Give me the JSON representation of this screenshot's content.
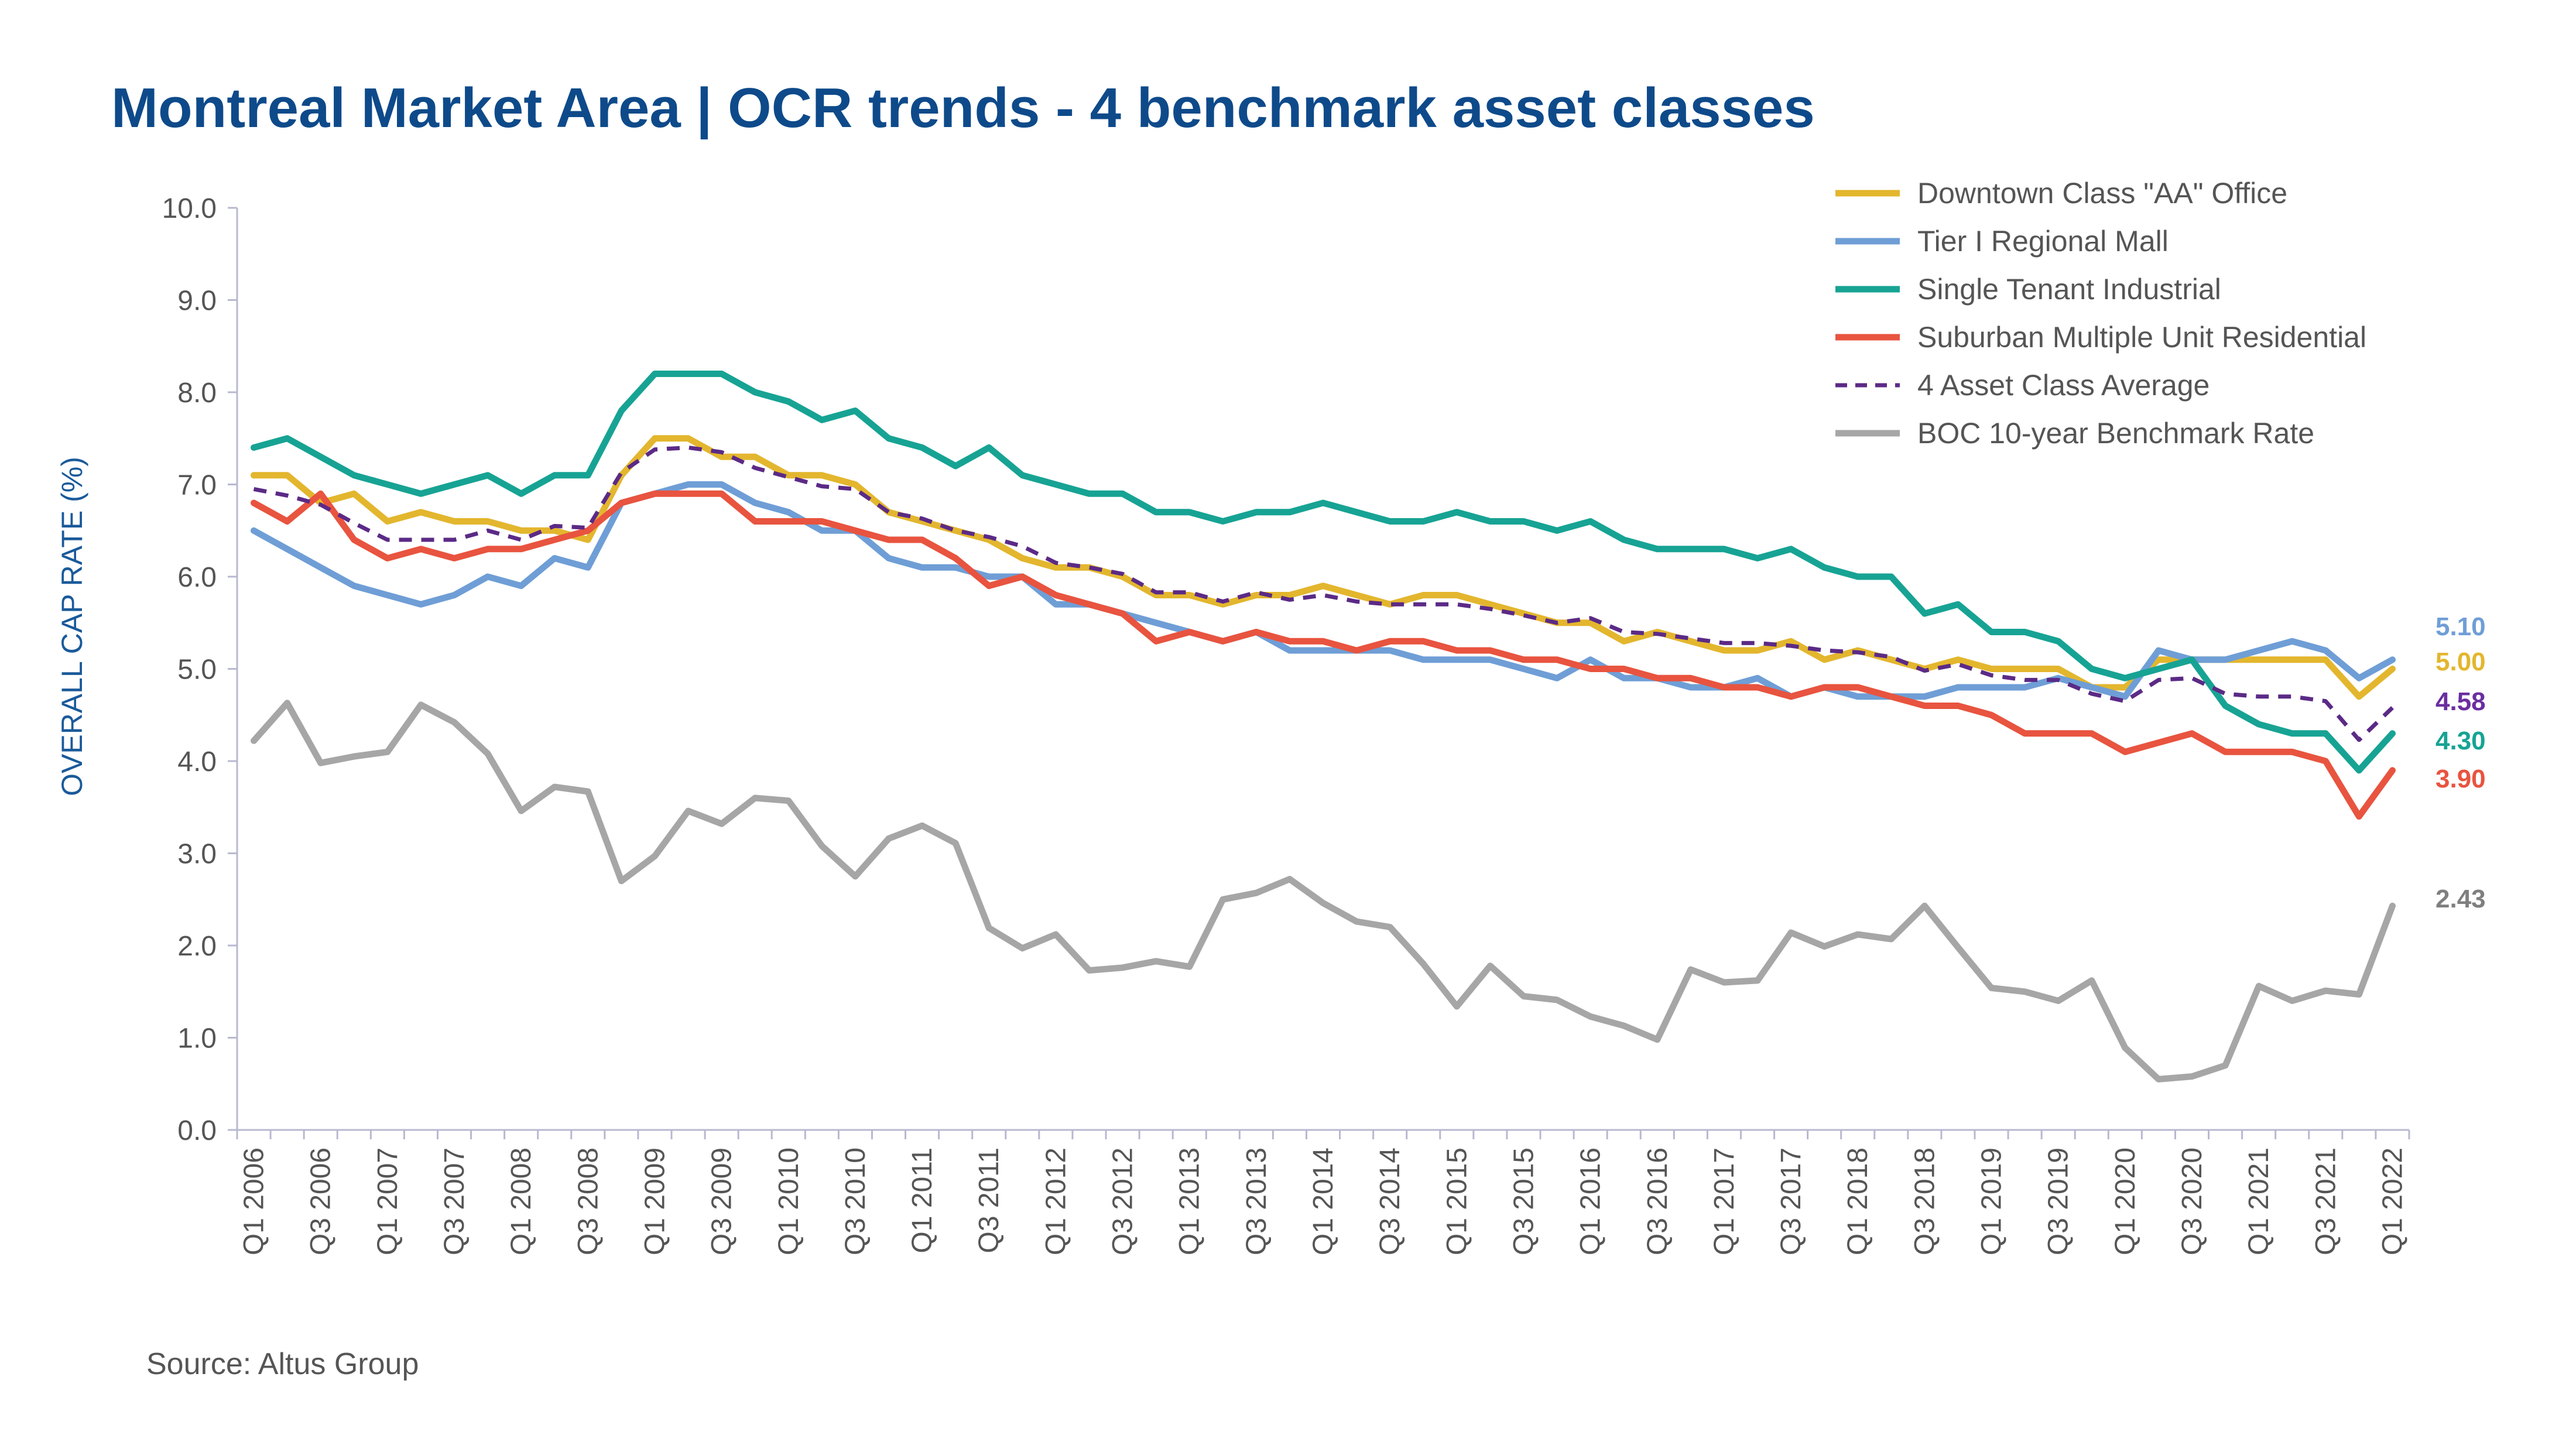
{
  "title": "Montreal Market Area | OCR trends - 4 benchmark asset classes",
  "source": "Source:  Altus Group",
  "chart_data": {
    "type": "line",
    "title": "Montreal Market Area | OCR trends - 4 benchmark asset classes",
    "ylabel": "OVERALL CAP RATE (%)",
    "xlabel": "",
    "ylim": [
      0,
      10
    ],
    "yticks": [
      "0.0",
      "1.0",
      "2.0",
      "3.0",
      "4.0",
      "5.0",
      "6.0",
      "7.0",
      "8.0",
      "9.0",
      "10.0"
    ],
    "grid": false,
    "legend_position": "top-right",
    "x": [
      "Q1 2006",
      "Q2 2006",
      "Q3 2006",
      "Q4 2006",
      "Q1 2007",
      "Q2 2007",
      "Q3 2007",
      "Q4 2007",
      "Q1 2008",
      "Q2 2008",
      "Q3 2008",
      "Q4 2008",
      "Q1 2009",
      "Q2 2009",
      "Q3 2009",
      "Q4 2009",
      "Q1 2010",
      "Q2 2010",
      "Q3 2010",
      "Q4 2010",
      "Q1 2011",
      "Q2 2011",
      "Q3 2011",
      "Q4 2011",
      "Q1 2012",
      "Q2 2012",
      "Q3 2012",
      "Q4 2012",
      "Q1 2013",
      "Q2 2013",
      "Q3 2013",
      "Q4 2013",
      "Q1 2014",
      "Q2 2014",
      "Q3 2014",
      "Q4 2014",
      "Q1 2015",
      "Q2 2015",
      "Q3 2015",
      "Q4 2015",
      "Q1 2016",
      "Q2 2016",
      "Q3 2016",
      "Q4 2016",
      "Q1 2017",
      "Q2 2017",
      "Q3 2017",
      "Q4 2017",
      "Q1 2018",
      "Q2 2018",
      "Q3 2018",
      "Q4 2018",
      "Q1 2019",
      "Q2 2019",
      "Q3 2019",
      "Q4 2019",
      "Q1 2020",
      "Q2 2020",
      "Q3 2020",
      "Q4 2020",
      "Q1 2021",
      "Q2 2021",
      "Q3 2021",
      "Q4 2021",
      "Q1 2022"
    ],
    "x_tick_labels": [
      "Q1 2006",
      "Q3 2006",
      "Q1 2007",
      "Q3 2007",
      "Q1 2008",
      "Q3 2008",
      "Q1 2009",
      "Q3 2009",
      "Q1 2010",
      "Q3 2010",
      "Q1 2011",
      "Q3 2011",
      "Q1 2012",
      "Q3 2012",
      "Q1 2013",
      "Q3 2013",
      "Q1 2014",
      "Q3 2014",
      "Q1 2015",
      "Q3 2015",
      "Q1 2016",
      "Q3 2016",
      "Q1 2017",
      "Q3 2017",
      "Q1 2018",
      "Q3 2018",
      "Q1 2019",
      "Q3 2019",
      "Q1 2020",
      "Q3 2020",
      "Q1 2021",
      "Q3 2021",
      "Q1 2022"
    ],
    "series": [
      {
        "name": "Downtown Class \"AA\" Office",
        "color": "#e3b62e",
        "dash": false,
        "end_label": "5.00",
        "values": [
          7.1,
          7.1,
          6.8,
          6.9,
          6.6,
          6.7,
          6.6,
          6.6,
          6.5,
          6.5,
          6.4,
          7.1,
          7.5,
          7.5,
          7.3,
          7.3,
          7.1,
          7.1,
          7.0,
          6.7,
          6.6,
          6.5,
          6.4,
          6.2,
          6.1,
          6.1,
          6.0,
          5.8,
          5.8,
          5.7,
          5.8,
          5.8,
          5.9,
          5.8,
          5.7,
          5.8,
          5.8,
          5.7,
          5.6,
          5.5,
          5.5,
          5.3,
          5.4,
          5.3,
          5.2,
          5.2,
          5.3,
          5.1,
          5.2,
          5.1,
          5.0,
          5.1,
          5.0,
          5.0,
          5.0,
          4.8,
          4.8,
          5.1,
          5.1,
          5.1,
          5.1,
          5.1,
          5.1,
          4.7,
          5.0
        ]
      },
      {
        "name": "Tier I Regional Mall",
        "color": "#6f9ed6",
        "dash": false,
        "end_label": "5.10",
        "values": [
          6.5,
          6.3,
          6.1,
          5.9,
          5.8,
          5.7,
          5.8,
          6.0,
          5.9,
          6.2,
          6.1,
          6.8,
          6.9,
          7.0,
          7.0,
          6.8,
          6.7,
          6.5,
          6.5,
          6.2,
          6.1,
          6.1,
          6.0,
          6.0,
          5.7,
          5.7,
          5.6,
          5.5,
          5.4,
          5.3,
          5.4,
          5.2,
          5.2,
          5.2,
          5.2,
          5.1,
          5.1,
          5.1,
          5.0,
          4.9,
          5.1,
          4.9,
          4.9,
          4.8,
          4.8,
          4.9,
          4.7,
          4.8,
          4.7,
          4.7,
          4.7,
          4.8,
          4.8,
          4.8,
          4.9,
          4.8,
          4.7,
          5.2,
          5.1,
          5.1,
          5.2,
          5.3,
          5.2,
          4.9,
          5.1
        ]
      },
      {
        "name": "Single Tenant Industrial",
        "color": "#17a394",
        "dash": false,
        "end_label": "4.30",
        "values": [
          7.4,
          7.5,
          7.3,
          7.1,
          7.0,
          6.9,
          7.0,
          7.1,
          6.9,
          7.1,
          7.1,
          7.8,
          8.2,
          8.2,
          8.2,
          8.0,
          7.9,
          7.7,
          7.8,
          7.5,
          7.4,
          7.2,
          7.4,
          7.1,
          7.0,
          6.9,
          6.9,
          6.7,
          6.7,
          6.6,
          6.7,
          6.7,
          6.8,
          6.7,
          6.6,
          6.6,
          6.7,
          6.6,
          6.6,
          6.5,
          6.6,
          6.4,
          6.3,
          6.3,
          6.3,
          6.2,
          6.3,
          6.1,
          6.0,
          6.0,
          5.6,
          5.7,
          5.4,
          5.4,
          5.3,
          5.0,
          4.9,
          5.0,
          5.1,
          4.6,
          4.4,
          4.3,
          4.3,
          3.9,
          4.3
        ]
      },
      {
        "name": "Suburban Multiple Unit Residential",
        "color": "#e8543f",
        "dash": false,
        "end_label": "3.90",
        "values": [
          6.8,
          6.6,
          6.9,
          6.4,
          6.2,
          6.3,
          6.2,
          6.3,
          6.3,
          6.4,
          6.5,
          6.8,
          6.9,
          6.9,
          6.9,
          6.6,
          6.6,
          6.6,
          6.5,
          6.4,
          6.4,
          6.2,
          5.9,
          6.0,
          5.8,
          5.7,
          5.6,
          5.3,
          5.4,
          5.3,
          5.4,
          5.3,
          5.3,
          5.2,
          5.3,
          5.3,
          5.2,
          5.2,
          5.1,
          5.1,
          5.0,
          5.0,
          4.9,
          4.9,
          4.8,
          4.8,
          4.7,
          4.8,
          4.8,
          4.7,
          4.6,
          4.6,
          4.5,
          4.3,
          4.3,
          4.3,
          4.1,
          4.2,
          4.3,
          4.1,
          4.1,
          4.1,
          4.0,
          3.4,
          3.9
        ]
      },
      {
        "name": "4 Asset Class Average",
        "color": "#5b2a86",
        "dash": true,
        "end_label": "4.58",
        "values": [
          6.95,
          6.88,
          6.78,
          6.58,
          6.4,
          6.4,
          6.4,
          6.5,
          6.4,
          6.55,
          6.53,
          7.13,
          7.38,
          7.4,
          7.35,
          7.18,
          7.08,
          6.98,
          6.95,
          6.7,
          6.63,
          6.5,
          6.43,
          6.33,
          6.15,
          6.1,
          6.03,
          5.83,
          5.83,
          5.73,
          5.83,
          5.75,
          5.8,
          5.73,
          5.7,
          5.7,
          5.7,
          5.65,
          5.58,
          5.5,
          5.55,
          5.4,
          5.38,
          5.33,
          5.28,
          5.28,
          5.25,
          5.2,
          5.18,
          5.13,
          4.98,
          5.05,
          4.93,
          4.88,
          4.88,
          4.73,
          4.65,
          4.88,
          4.9,
          4.73,
          4.7,
          4.7,
          4.65,
          4.23,
          4.58
        ]
      },
      {
        "name": "BOC 10-year Benchmark Rate",
        "color": "#a6a6a6",
        "dash": false,
        "end_label": "2.43",
        "values": [
          4.22,
          4.63,
          3.98,
          4.05,
          4.1,
          4.61,
          4.42,
          4.08,
          3.46,
          3.72,
          3.67,
          2.7,
          2.97,
          3.46,
          3.32,
          3.6,
          3.57,
          3.08,
          2.75,
          3.16,
          3.3,
          3.11,
          2.19,
          1.97,
          2.12,
          1.73,
          1.76,
          1.83,
          1.77,
          2.5,
          2.57,
          2.72,
          2.46,
          2.26,
          2.2,
          1.8,
          1.34,
          1.78,
          1.45,
          1.41,
          1.23,
          1.13,
          0.98,
          1.74,
          1.6,
          1.62,
          2.14,
          1.99,
          2.12,
          2.07,
          2.43,
          1.98,
          1.54,
          1.5,
          1.4,
          1.62,
          0.89,
          0.55,
          0.58,
          0.7,
          1.56,
          1.4,
          1.51,
          1.47,
          2.43
        ]
      }
    ]
  }
}
